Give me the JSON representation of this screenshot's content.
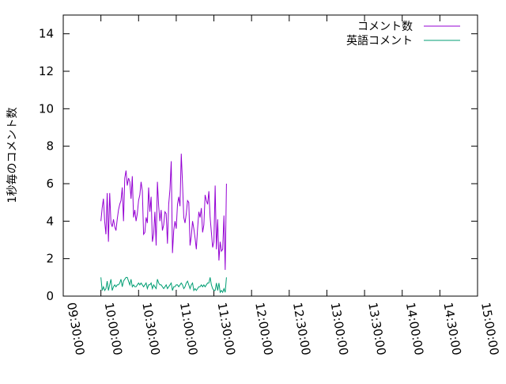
{
  "chart_data": {
    "type": "line",
    "title": "",
    "xlabel": "",
    "ylabel": "1秒毎のコメント数",
    "x_start": "10:00:00",
    "x_step_seconds": 60,
    "xlim": [
      "09:30:00",
      "15:00:00"
    ],
    "xticks": [
      "09:30:00",
      "10:00:00",
      "10:30:00",
      "11:00:00",
      "11:30:00",
      "12:00:00",
      "12:30:00",
      "13:00:00",
      "13:30:00",
      "14:00:00",
      "14:30:00",
      "15:00:00"
    ],
    "ylim": [
      0,
      15
    ],
    "yticks": [
      "0",
      "2",
      "4",
      "6",
      "8",
      "10",
      "12",
      "14"
    ],
    "grid": false,
    "legend_position": "top-right",
    "series": [
      {
        "name": "コメント数",
        "color": "#9400d3",
        "values": [
          4.0,
          4.7,
          5.2,
          4.0,
          3.3,
          5.5,
          2.9,
          5.5,
          3.9,
          3.7,
          4.1,
          3.7,
          3.5,
          4.1,
          4.6,
          4.9,
          5.1,
          5.8,
          4.0,
          6.3,
          6.7,
          5.9,
          6.3,
          6.1,
          5.2,
          6.4,
          4.2,
          4.6,
          4.0,
          4.4,
          5.1,
          5.4,
          6.1,
          5.6,
          3.3,
          3.4,
          4.2,
          3.9,
          5.8,
          4.5,
          5.3,
          2.9,
          3.3,
          4.5,
          2.7,
          6.1,
          4.8,
          4.0,
          4.6,
          3.5,
          3.8,
          4.5,
          4.4,
          2.8,
          4.9,
          5.7,
          7.2,
          2.3,
          3.5,
          4.0,
          3.6,
          4.9,
          5.3,
          4.8,
          7.6,
          6.0,
          4.2,
          3.9,
          4.4,
          5.1,
          5.0,
          2.7,
          3.2,
          4.0,
          3.6,
          3.1,
          2.5,
          3.6,
          4.5,
          4.2,
          4.7,
          3.4,
          3.8,
          5.4,
          5.1,
          4.9,
          5.6,
          4.2,
          3.4,
          2.6,
          2.9,
          5.9,
          2.5,
          4.1,
          1.9,
          2.9,
          2.4,
          2.5,
          4.3,
          1.4,
          6.0
        ]
      },
      {
        "name": "英語コメント",
        "color": "#009e73",
        "values": [
          1.0,
          0.3,
          0.5,
          0.3,
          0.4,
          0.8,
          0.3,
          0.6,
          0.9,
          0.3,
          0.5,
          0.6,
          0.5,
          0.6,
          0.6,
          0.7,
          0.9,
          0.5,
          0.8,
          0.9,
          1.0,
          1.0,
          0.8,
          0.6,
          0.9,
          0.5,
          0.6,
          0.5,
          0.5,
          0.6,
          0.7,
          0.6,
          0.7,
          0.6,
          0.5,
          0.6,
          0.7,
          0.4,
          0.6,
          0.6,
          0.7,
          0.4,
          0.6,
          0.5,
          0.4,
          0.9,
          0.7,
          0.6,
          0.6,
          0.5,
          0.4,
          0.5,
          0.6,
          0.4,
          0.5,
          0.6,
          0.7,
          0.3,
          0.5,
          0.5,
          0.6,
          0.6,
          0.5,
          0.6,
          0.7,
          0.6,
          0.4,
          0.5,
          0.7,
          0.8,
          0.6,
          0.4,
          0.6,
          0.7,
          0.3,
          0.4,
          0.3,
          0.4,
          0.5,
          0.5,
          0.6,
          0.5,
          0.6,
          0.5,
          0.6,
          0.7,
          0.7,
          1.0,
          0.6,
          0.4,
          0.3,
          0.3,
          0.7,
          0.3,
          0.7,
          0.2,
          0.3,
          0.2,
          0.4,
          0.2,
          1.0
        ]
      }
    ]
  }
}
